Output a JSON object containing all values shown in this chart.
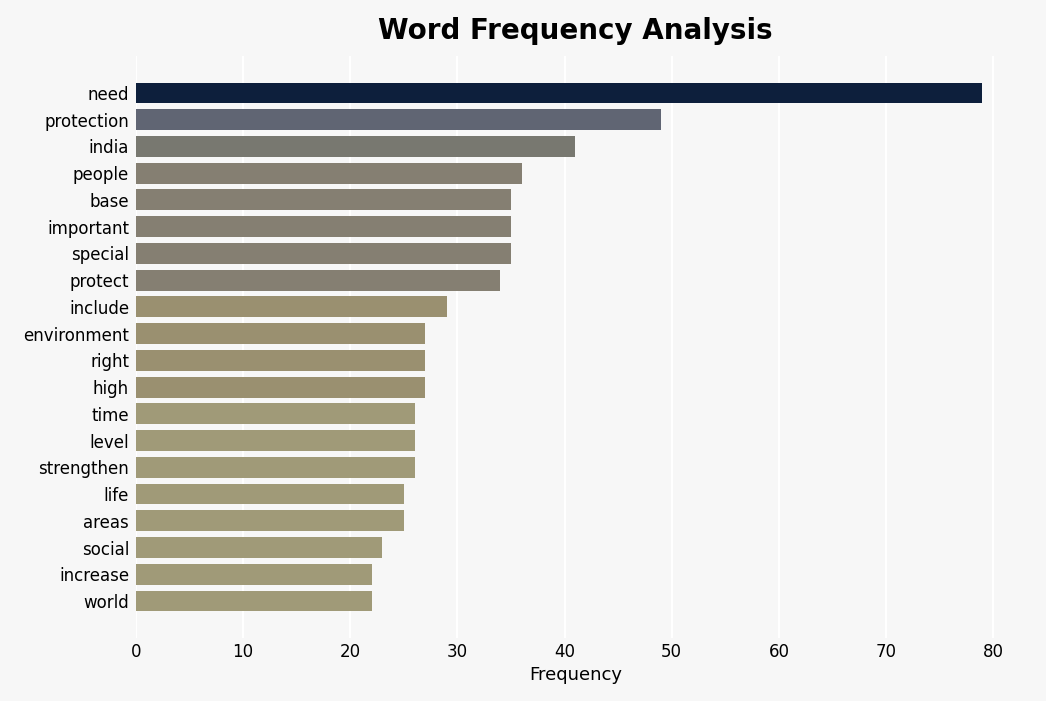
{
  "title": "Word Frequency Analysis",
  "xlabel": "Frequency",
  "categories": [
    "need",
    "protection",
    "india",
    "people",
    "base",
    "important",
    "special",
    "protect",
    "include",
    "environment",
    "right",
    "high",
    "time",
    "level",
    "strengthen",
    "life",
    "areas",
    "social",
    "increase",
    "world"
  ],
  "values": [
    79,
    49,
    41,
    36,
    35,
    35,
    35,
    34,
    29,
    27,
    27,
    27,
    26,
    26,
    26,
    25,
    25,
    23,
    22,
    22
  ],
  "bar_colors": [
    "#0d1f3c",
    "#606573",
    "#787870",
    "#857f72",
    "#857f72",
    "#857f72",
    "#857f72",
    "#857f72",
    "#9a9070",
    "#9a9070",
    "#9a9070",
    "#9a9070",
    "#a09a78",
    "#a09a78",
    "#a09a78",
    "#a09a78",
    "#a09a78",
    "#a09a78",
    "#a09a78",
    "#a09a78"
  ],
  "xlim": [
    0,
    82
  ],
  "background_color": "#f7f7f7",
  "title_fontsize": 20,
  "xlabel_fontsize": 13,
  "tick_fontsize": 12,
  "bar_height": 0.78
}
